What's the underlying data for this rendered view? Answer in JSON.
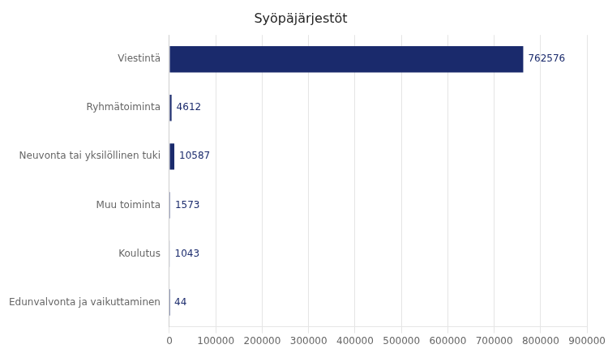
{
  "chart_data": {
    "type": "bar",
    "orientation": "horizontal",
    "title": "Syöpäjärjestöt",
    "categories": [
      "Edunvalvonta ja vaikuttaminen",
      "Koulutus",
      "Muu toiminta",
      "Neuvonta tai yksilöllinen tuki",
      "Ryhmätoiminta",
      "Viestintä"
    ],
    "values": [
      44,
      1043,
      1573,
      10587,
      4612,
      762576
    ],
    "color": "#1a2a6c",
    "xlim": [
      0,
      900000
    ],
    "xticks": [
      0,
      100000,
      200000,
      300000,
      400000,
      500000,
      600000,
      700000,
      800000,
      900000
    ],
    "grid": true,
    "data_labels": true
  }
}
